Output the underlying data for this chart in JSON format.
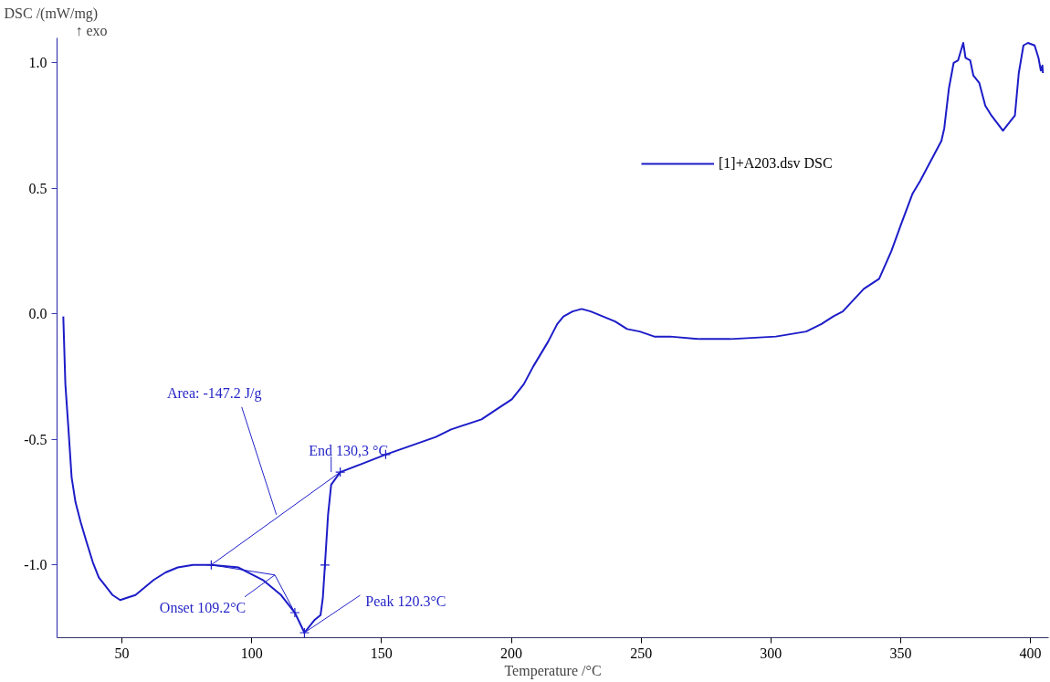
{
  "chart_data": {
    "type": "line",
    "xlabel": "Temperature /°C",
    "ylabel": "DSC /(mW/mg)",
    "xlim": [
      25,
      407
    ],
    "ylim": [
      -1.29,
      1.1
    ],
    "xticks": [
      50,
      100,
      150,
      200,
      250,
      300,
      350,
      400
    ],
    "yticks": [
      {
        "value": -1.0,
        "label": "-1.0"
      },
      {
        "value": -0.5,
        "label": "-0.5"
      },
      {
        "value": 0.0,
        "label": "0.0"
      },
      {
        "value": 0.5,
        "label": "0.5"
      },
      {
        "value": 1.0,
        "label": "1.0"
      }
    ],
    "legend": "top right",
    "series": [
      {
        "name": "[1]+A203.dsv DSC",
        "color": "#1c1cc8",
        "x": [
          27.4,
          28.2,
          29.4,
          30.6,
          32.1,
          34.1,
          36.4,
          38.8,
          41.1,
          43.4,
          46.4,
          49.3,
          52.2,
          55.2,
          58.7,
          62.2,
          66.8,
          71.5,
          77.4,
          84.4,
          94.9,
          104.3,
          111.3,
          116.6,
          120.3,
          124.1,
          126.5,
          127.4,
          128.2,
          129.4,
          130.6,
          134.1,
          141.7,
          151.6,
          170.9,
          176.8,
          188.5,
          194.3,
          200.2,
          204.8,
          208.4,
          214.2,
          217.7,
          220.1,
          223.6,
          227.1,
          230.6,
          235.3,
          240.0,
          244.6,
          249.5,
          255.1,
          261.2,
          272.7,
          284.4,
          301.9,
          313.6,
          319.5,
          324.0,
          327.7,
          335.8,
          341.7,
          346.4,
          349.9,
          354.6,
          357.5,
          361.6,
          365.7,
          366.8,
          368.6,
          370.4,
          372.1,
          374.1,
          375.0,
          376.8,
          378.0,
          380.3,
          382.6,
          385.0,
          389.4,
          393.2,
          394.0,
          395.5,
          397.3,
          399.0,
          401.6,
          403.1,
          404.0,
          404.6,
          404.8
        ],
        "values": [
          -0.01,
          -0.28,
          -0.46,
          -0.65,
          -0.75,
          -0.83,
          -0.91,
          -0.99,
          -1.05,
          -1.08,
          -1.12,
          -1.14,
          -1.13,
          -1.12,
          -1.09,
          -1.06,
          -1.03,
          -1.01,
          -1.0,
          -1.0,
          -1.01,
          -1.06,
          -1.12,
          -1.19,
          -1.27,
          -1.22,
          -1.2,
          -1.13,
          -1.0,
          -0.8,
          -0.68,
          -0.63,
          -0.6,
          -0.56,
          -0.49,
          -0.46,
          -0.42,
          -0.38,
          -0.34,
          -0.28,
          -0.21,
          -0.11,
          -0.04,
          -0.01,
          0.01,
          0.02,
          0.01,
          -0.01,
          -0.03,
          -0.06,
          -0.07,
          -0.09,
          -0.09,
          -0.1,
          -0.1,
          -0.09,
          -0.07,
          -0.04,
          -0.01,
          0.01,
          0.1,
          0.14,
          0.25,
          0.35,
          0.48,
          0.53,
          0.61,
          0.69,
          0.74,
          0.9,
          1.0,
          1.01,
          1.08,
          1.02,
          1.01,
          0.95,
          0.92,
          0.83,
          0.79,
          0.73,
          0.78,
          0.79,
          0.96,
          1.07,
          1.08,
          1.07,
          1.02,
          0.97,
          0.99,
          0.96
        ]
      },
      {
        "type": "line",
        "color": "#1c1cc8",
        "x": [
          84.4,
          134.1
        ],
        "values": [
          -1.0,
          -0.63
        ]
      },
      {
        "type": "line",
        "color": "#1c1cc8",
        "x": [
          84.4,
          108.9,
          116.6
        ],
        "values": [
          -1.0,
          -1.04,
          -1.19
        ]
      },
      {
        "type": "scatter",
        "marker": "cross",
        "color": "#1c1cc8",
        "x": [
          84.4,
          116.6,
          120.3,
          128.2,
          134.1,
          151.6
        ],
        "values": [
          -1.0,
          -1.19,
          -1.27,
          -1.0,
          -0.63,
          -0.56
        ]
      }
    ],
    "annotations": [
      {
        "text": "Area: -147.2 J/g",
        "x": 109.5,
        "y": -0.8
      },
      {
        "text": "End 130,3 °C",
        "x": 130.6,
        "y": -0.63
      },
      {
        "text": "Onset 109.2°C",
        "x": 108.9,
        "y": -1.04
      },
      {
        "text": "Peak 120.3°C",
        "x": 120.3,
        "y": -1.27
      },
      "↑ exo"
    ]
  }
}
